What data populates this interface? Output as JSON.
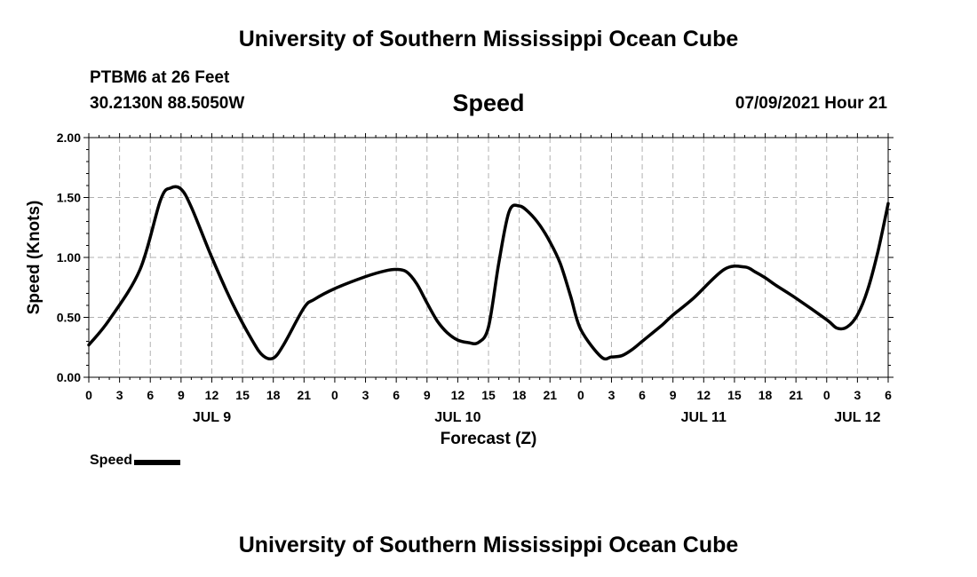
{
  "header": {
    "title": "University of Southern Mississippi Ocean Cube",
    "station": "PTBM6 at 26 Feet",
    "coords": "30.2130N  88.5050W",
    "variable": "Speed",
    "timestamp": "07/09/2021 Hour 21"
  },
  "footer": {
    "title": "University of Southern Mississippi Ocean Cube"
  },
  "legend": {
    "label": "Speed"
  },
  "chart_data": {
    "type": "line",
    "title": "Speed",
    "xlabel": "Forecast (Z)",
    "ylabel": "Speed (Knots)",
    "ylim": [
      0,
      2.0
    ],
    "xlim": [
      0,
      78
    ],
    "grid": true,
    "legend_position": "bottom-left",
    "y_ticks": [
      "0.00",
      "0.50",
      "1.00",
      "1.50",
      "2.00"
    ],
    "x_tick_labels": [
      "0",
      "3",
      "6",
      "9",
      "12",
      "15",
      "18",
      "21",
      "0",
      "3",
      "6",
      "9",
      "12",
      "15",
      "18",
      "21",
      "0",
      "3",
      "6",
      "9",
      "12",
      "15",
      "18",
      "21",
      "0",
      "3",
      "6"
    ],
    "date_labels": [
      {
        "label": "JUL 9",
        "x": 12
      },
      {
        "label": "JUL 10",
        "x": 36
      },
      {
        "label": "JUL 11",
        "x": 60
      },
      {
        "label": "JUL 12",
        "x": 75
      }
    ],
    "series": [
      {
        "name": "Speed",
        "color": "#000000",
        "x": [
          0,
          2,
          5,
          7,
          8,
          9,
          10,
          12,
          14,
          16,
          17,
          18,
          19,
          21,
          22,
          24,
          27,
          29,
          30,
          31,
          32,
          33,
          34,
          35,
          36,
          37,
          38,
          39,
          40,
          41,
          42,
          43,
          44,
          45,
          46,
          47,
          48,
          50,
          51,
          52,
          53,
          54,
          55,
          56,
          57,
          59,
          62,
          64,
          65,
          66,
          67,
          69,
          72,
          73,
          74,
          75,
          76,
          77,
          78
        ],
        "y": [
          0.27,
          0.48,
          0.9,
          1.48,
          1.58,
          1.57,
          1.42,
          1.0,
          0.62,
          0.3,
          0.18,
          0.16,
          0.27,
          0.58,
          0.65,
          0.74,
          0.84,
          0.89,
          0.9,
          0.88,
          0.78,
          0.62,
          0.47,
          0.37,
          0.31,
          0.29,
          0.29,
          0.42,
          0.95,
          1.38,
          1.43,
          1.37,
          1.27,
          1.13,
          0.95,
          0.68,
          0.4,
          0.17,
          0.17,
          0.18,
          0.23,
          0.3,
          0.37,
          0.44,
          0.52,
          0.66,
          0.9,
          0.92,
          0.88,
          0.83,
          0.77,
          0.66,
          0.48,
          0.41,
          0.42,
          0.52,
          0.73,
          1.05,
          1.45
        ]
      }
    ]
  }
}
